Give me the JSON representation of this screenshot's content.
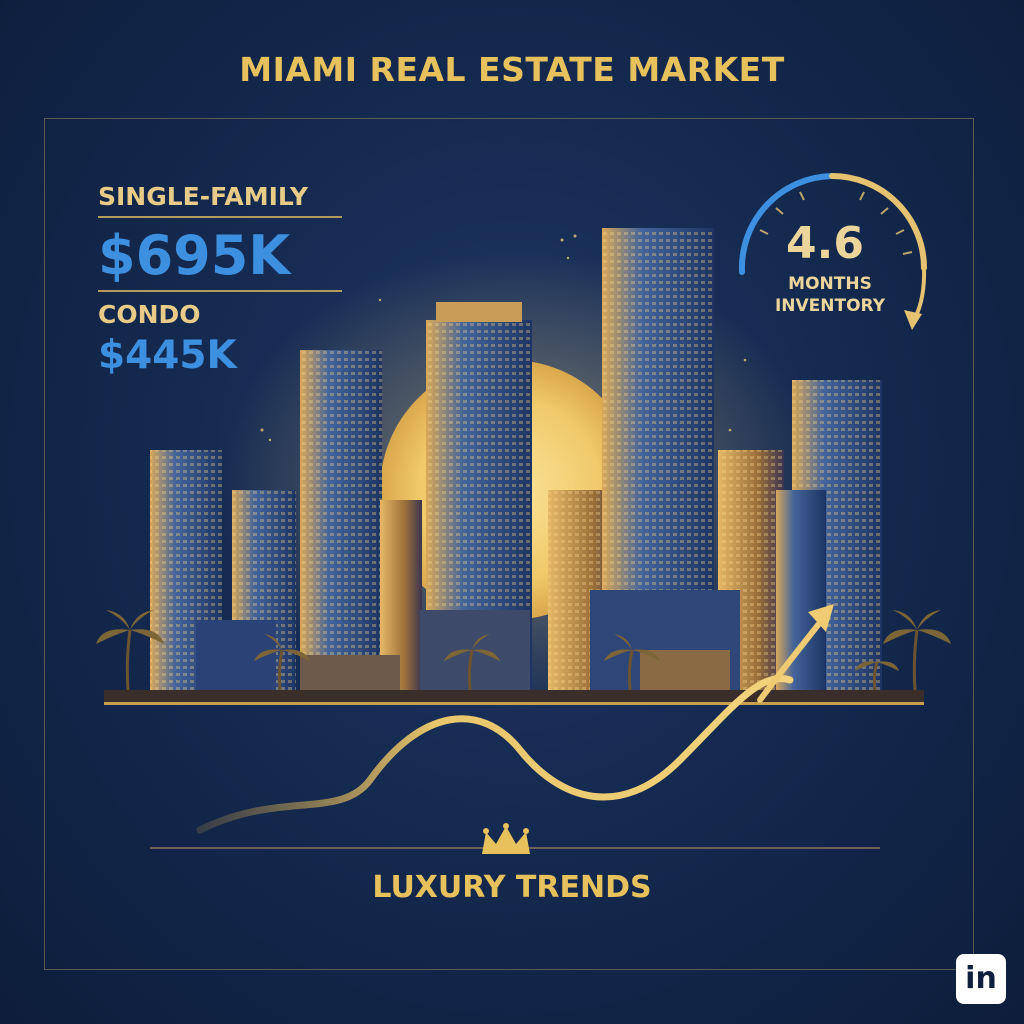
{
  "title": "MIAMI REAL ESTATE MARKET",
  "stats": {
    "single_family_label": "SINGLE-FAMILY",
    "single_family_value": "$695K",
    "condo_label": "CONDO",
    "condo_value": "$445K"
  },
  "gauge": {
    "value": "4.6",
    "caption_line1": "MONTHS",
    "caption_line2": "INVENTORY"
  },
  "footer": {
    "label": "LUXURY TRENDS"
  },
  "badge": {
    "text": "in"
  },
  "icons": {
    "crown": "crown-icon",
    "trend_arrow": "trend-arrow-icon",
    "gauge": "gauge-icon"
  },
  "colors": {
    "background": "#152a50",
    "gold": "#e7c15c",
    "blue_accent": "#3d8fe0",
    "sun": "#f2cf72"
  }
}
